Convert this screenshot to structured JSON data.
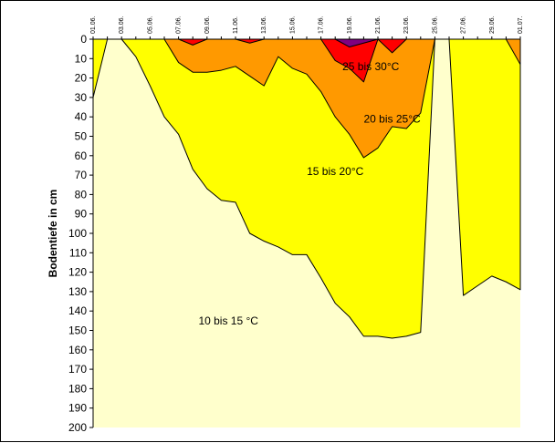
{
  "chart_data": {
    "type": "area",
    "title": "",
    "ylabel": "Bodentiefe in cm",
    "ylim": [
      0,
      200
    ],
    "y_reversed": true,
    "y_ticks": [
      0,
      10,
      20,
      30,
      40,
      50,
      60,
      70,
      80,
      90,
      100,
      110,
      120,
      130,
      140,
      150,
      160,
      170,
      180,
      190,
      200
    ],
    "x_dates": [
      "01.06.",
      "02.06.",
      "03.06.",
      "04.06.",
      "05.06.",
      "06.06.",
      "07.06.",
      "08.06.",
      "09.06.",
      "10.06.",
      "11.06.",
      "12.06.",
      "13.06.",
      "14.06.",
      "15.06.",
      "16.06.",
      "17.06.",
      "18.06.",
      "19.06.",
      "20.06.",
      "21.06.",
      "22.06.",
      "23.06.",
      "24.06.",
      "25.06.",
      "26.06.",
      "27.06.",
      "28.06.",
      "29.06.",
      "30.06.",
      "01.07."
    ],
    "x_tick_labels": [
      "01.06.",
      "03.06.",
      "05.06.",
      "07.06.",
      "09.06.",
      "11.06.",
      "13.06.",
      "15.06.",
      "17.06.",
      "19.06.",
      "21.06.",
      "23.06.",
      "25.06.",
      "27.06.",
      "29.06.",
      "01.07."
    ],
    "series": [
      {
        "name": "10 bis 15 °C",
        "color": "#FFFFCC",
        "label_pos": [
          9.5,
          145
        ]
      },
      {
        "name": "15 bis 20°C",
        "color": "#FFFF00",
        "boundary": [
          [
            "01.06.",
            30
          ],
          [
            "02.06.",
            0
          ],
          [
            "03.06.",
            0
          ],
          [
            "04.06.",
            9
          ],
          [
            "05.06.",
            24
          ],
          [
            "06.06.",
            40
          ],
          [
            "07.06.",
            49
          ],
          [
            "08.06.",
            67
          ],
          [
            "09.06.",
            77
          ],
          [
            "10.06.",
            83
          ],
          [
            "11.06.",
            84
          ],
          [
            "12.06.",
            100
          ],
          [
            "13.06.",
            104
          ],
          [
            "14.06.",
            107
          ],
          [
            "15.06.",
            111
          ],
          [
            "16.06.",
            111
          ],
          [
            "17.06.",
            123
          ],
          [
            "18.06.",
            136
          ],
          [
            "19.06.",
            143
          ],
          [
            "20.06.",
            153
          ],
          [
            "21.06.",
            153
          ],
          [
            "22.06.",
            154
          ],
          [
            "23.06.",
            153
          ],
          [
            "24.06.",
            151
          ],
          [
            "25.06.",
            0
          ],
          [
            "26.06.",
            0
          ],
          [
            "27.06.",
            132
          ],
          [
            "28.06.",
            127
          ],
          [
            "29.06.",
            122
          ],
          [
            "30.06.",
            125
          ],
          [
            "01.07.",
            129
          ]
        ],
        "label_pos": [
          17,
          68
        ]
      },
      {
        "name": "20 bis 25°C",
        "color": "#FF9900",
        "boundary": [
          [
            "01.06.",
            0
          ],
          [
            "02.06.",
            0
          ],
          [
            "03.06.",
            0
          ],
          [
            "04.06.",
            0
          ],
          [
            "05.06.",
            0
          ],
          [
            "06.06.",
            0
          ],
          [
            "07.06.",
            12
          ],
          [
            "08.06.",
            17
          ],
          [
            "09.06.",
            17
          ],
          [
            "10.06.",
            16
          ],
          [
            "11.06.",
            14
          ],
          [
            "12.06.",
            19
          ],
          [
            "13.06.",
            24
          ],
          [
            "14.06.",
            9
          ],
          [
            "15.06.",
            15
          ],
          [
            "16.06.",
            18
          ],
          [
            "17.06.",
            27
          ],
          [
            "18.06.",
            40
          ],
          [
            "19.06.",
            49
          ],
          [
            "20.06.",
            61
          ],
          [
            "21.06.",
            56
          ],
          [
            "22.06.",
            45
          ],
          [
            "23.06.",
            46
          ],
          [
            "24.06.",
            38
          ],
          [
            "25.06.",
            0
          ],
          [
            "26.06.",
            0
          ],
          [
            "27.06.",
            0
          ],
          [
            "28.06.",
            0
          ],
          [
            "29.06.",
            0
          ],
          [
            "30.06.",
            0
          ],
          [
            "01.07.",
            13
          ]
        ],
        "label_pos": [
          21,
          41
        ]
      },
      {
        "name": "25 bis 30°C",
        "color": "#FF0000",
        "boundary": [
          [
            "01.06.",
            0
          ],
          [
            "02.06.",
            0
          ],
          [
            "03.06.",
            0
          ],
          [
            "04.06.",
            0
          ],
          [
            "05.06.",
            0
          ],
          [
            "06.06.",
            0
          ],
          [
            "07.06.",
            0
          ],
          [
            "08.06.",
            3
          ],
          [
            "09.06.",
            0
          ],
          [
            "10.06.",
            0
          ],
          [
            "11.06.",
            0
          ],
          [
            "12.06.",
            2
          ],
          [
            "13.06.",
            0
          ],
          [
            "14.06.",
            0
          ],
          [
            "15.06.",
            0
          ],
          [
            "16.06.",
            0
          ],
          [
            "17.06.",
            0
          ],
          [
            "18.06.",
            11
          ],
          [
            "19.06.",
            15
          ],
          [
            "20.06.",
            22
          ],
          [
            "21.06.",
            0
          ],
          [
            "22.06.",
            7
          ],
          [
            "23.06.",
            0
          ],
          [
            "24.06.",
            0
          ],
          [
            "25.06.",
            0
          ],
          [
            "26.06.",
            0
          ],
          [
            "27.06.",
            0
          ],
          [
            "28.06.",
            0
          ],
          [
            "29.06.",
            0
          ],
          [
            "30.06.",
            0
          ],
          [
            "01.07.",
            0
          ]
        ],
        "label_pos": [
          19.5,
          14
        ]
      },
      {
        "name": "",
        "color": "#800080",
        "boundary": [
          [
            "01.06.",
            0
          ],
          [
            "02.06.",
            0
          ],
          [
            "03.06.",
            0
          ],
          [
            "04.06.",
            0
          ],
          [
            "05.06.",
            0
          ],
          [
            "06.06.",
            0
          ],
          [
            "07.06.",
            0
          ],
          [
            "08.06.",
            0
          ],
          [
            "09.06.",
            0
          ],
          [
            "10.06.",
            0
          ],
          [
            "11.06.",
            0
          ],
          [
            "12.06.",
            0
          ],
          [
            "13.06.",
            0
          ],
          [
            "14.06.",
            0
          ],
          [
            "15.06.",
            0
          ],
          [
            "16.06.",
            0
          ],
          [
            "17.06.",
            0
          ],
          [
            "18.06.",
            0
          ],
          [
            "19.06.",
            4
          ],
          [
            "20.06.",
            2
          ],
          [
            "21.06.",
            0
          ],
          [
            "22.06.",
            0
          ],
          [
            "23.06.",
            0
          ],
          [
            "24.06.",
            0
          ],
          [
            "25.06.",
            0
          ],
          [
            "26.06.",
            0
          ],
          [
            "27.06.",
            0
          ],
          [
            "28.06.",
            0
          ],
          [
            "29.06.",
            0
          ],
          [
            "30.06.",
            0
          ],
          [
            "01.07.",
            0
          ]
        ]
      }
    ]
  }
}
